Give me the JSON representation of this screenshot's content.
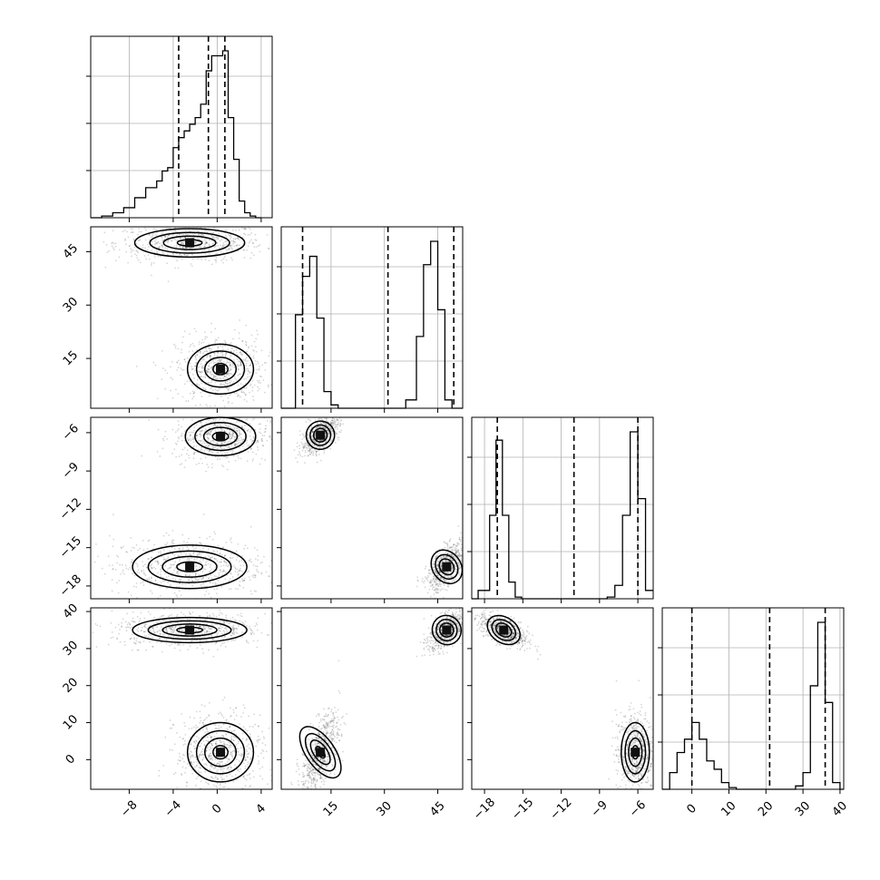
{
  "chart_data": {
    "type": "corner",
    "title": "",
    "n_params": 4,
    "params": [
      {
        "label": "",
        "range": [
          -11.5,
          5.0
        ],
        "ticks": [
          -8,
          -4,
          0,
          4
        ],
        "tick_labels": [
          "-8",
          "-4",
          "0",
          "4"
        ],
        "quantiles": [
          -3.5,
          -0.8,
          0.7
        ]
      },
      {
        "label": "",
        "range": [
          1.0,
          52.0
        ],
        "ticks": [
          15,
          30,
          45
        ],
        "tick_labels": [
          "15",
          "30",
          "45"
        ],
        "quantiles": [
          7.0,
          31.0,
          49.5
        ]
      },
      {
        "label": "",
        "range": [
          -19.0,
          -4.8
        ],
        "ticks": [
          -18,
          -15,
          -12,
          -9,
          -6
        ],
        "tick_labels": [
          "-18",
          "-15",
          "-12",
          "-9",
          "-6"
        ],
        "quantiles": [
          -17.0,
          -11.0,
          -6.0
        ]
      },
      {
        "label": "",
        "range": [
          -8.0,
          41.0
        ],
        "ticks": [
          0,
          10,
          20,
          30,
          40
        ],
        "tick_labels": [
          "0",
          "10",
          "20",
          "30",
          "40"
        ],
        "quantiles": [
          0.0,
          21.0,
          36.0
        ]
      }
    ],
    "histograms": [
      {
        "param": 0,
        "bins_x": [
          -11.5,
          -10.5,
          -9.5,
          -8.5,
          -7.5,
          -6.5,
          -5.5,
          -5.0,
          -4.5,
          -4.0,
          -3.5,
          -3.0,
          -2.5,
          -2.0,
          -1.5,
          -1.0,
          -0.5,
          0.0,
          0.5,
          1.0,
          1.5,
          2.0,
          2.5,
          3.0,
          3.5,
          4.0
        ],
        "counts": [
          0,
          0.01,
          0.03,
          0.06,
          0.12,
          0.18,
          0.22,
          0.28,
          0.3,
          0.42,
          0.48,
          0.52,
          0.56,
          0.6,
          0.68,
          0.88,
          0.97,
          0.97,
          1.0,
          0.6,
          0.35,
          0.1,
          0.03,
          0.01,
          0.0
        ]
      },
      {
        "param": 1,
        "bins_x": [
          1,
          3,
          5,
          7,
          9,
          11,
          13,
          15,
          17,
          19,
          21,
          36,
          39,
          41,
          43,
          45,
          47,
          49,
          51,
          52
        ],
        "counts": [
          0,
          0.0,
          0.56,
          0.79,
          0.91,
          0.54,
          0.1,
          0.02,
          0.0,
          0.0,
          0.0,
          0.05,
          0.43,
          0.86,
          1.0,
          0.59,
          0.05,
          0.0,
          0.0
        ]
      },
      {
        "param": 2,
        "bins_x": [
          -19.0,
          -18.5,
          -17.6,
          -17.1,
          -16.6,
          -16.1,
          -15.6,
          -15.1,
          -14.6,
          -9.0,
          -8.4,
          -7.8,
          -7.2,
          -6.6,
          -6.0,
          -5.4,
          -4.8
        ],
        "counts": [
          0,
          0.05,
          0.5,
          0.95,
          0.5,
          0.1,
          0.01,
          0.0,
          0.0,
          0.0,
          0.01,
          0.08,
          0.5,
          1.0,
          0.6,
          0.05
        ]
      },
      {
        "param": 3,
        "bins_x": [
          -8,
          -6,
          -4,
          -2,
          0,
          2,
          4,
          6,
          8,
          10,
          12,
          26,
          28,
          30,
          32,
          34,
          36,
          38,
          40,
          41
        ],
        "counts": [
          0,
          0.1,
          0.22,
          0.3,
          0.4,
          0.3,
          0.17,
          0.12,
          0.04,
          0.01,
          0.0,
          0.0,
          0.02,
          0.1,
          0.62,
          1.0,
          0.52,
          0.04,
          0.0
        ]
      }
    ],
    "pairs": [
      {
        "x_param": 0,
        "y_param": 1,
        "modes": [
          {
            "center": [
              -2.5,
              47.5
            ],
            "spread": [
              2.5,
              2.0
            ],
            "weight": 0.5
          },
          {
            "center": [
              0.3,
              12.0
            ],
            "spread": [
              1.5,
              3.5
            ],
            "weight": 0.5
          }
        ]
      },
      {
        "x_param": 0,
        "y_param": 2,
        "modes": [
          {
            "center": [
              0.3,
              -6.3
            ],
            "spread": [
              1.6,
              0.75
            ],
            "weight": 0.5
          },
          {
            "center": [
              -2.5,
              -16.5
            ],
            "spread": [
              2.6,
              0.85
            ],
            "weight": 0.5
          }
        ]
      },
      {
        "x_param": 0,
        "y_param": 3,
        "modes": [
          {
            "center": [
              -2.5,
              35.0
            ],
            "spread": [
              2.6,
              1.7
            ],
            "weight": 0.5
          },
          {
            "center": [
              0.3,
              2.0
            ],
            "spread": [
              1.5,
              4.0
            ],
            "weight": 0.5
          }
        ]
      },
      {
        "x_param": 1,
        "y_param": 2,
        "modes": [
          {
            "center": [
              12.0,
              -6.2
            ],
            "spread": [
              2.0,
              0.55
            ],
            "weight": 0.5,
            "corr": 0.6
          },
          {
            "center": [
              47.5,
              -16.5
            ],
            "spread": [
              2.0,
              0.7
            ],
            "weight": 0.5,
            "corr": 0.6
          }
        ]
      },
      {
        "x_param": 1,
        "y_param": 3,
        "modes": [
          {
            "center": [
              47.5,
              35.0
            ],
            "spread": [
              2.0,
              2.0
            ],
            "weight": 0.5,
            "corr": 0.6
          },
          {
            "center": [
              12.0,
              2.0
            ],
            "spread": [
              2.0,
              4.0
            ],
            "weight": 0.5,
            "corr": 0.6
          }
        ]
      },
      {
        "x_param": 2,
        "y_param": 3,
        "modes": [
          {
            "center": [
              -16.5,
              35.0
            ],
            "spread": [
              0.7,
              1.7
            ],
            "weight": 0.5,
            "corr": -0.6
          },
          {
            "center": [
              -6.2,
              2.0
            ],
            "spread": [
              0.55,
              4.0
            ],
            "weight": 0.5
          }
        ]
      }
    ],
    "grid": true,
    "legend": "none"
  }
}
